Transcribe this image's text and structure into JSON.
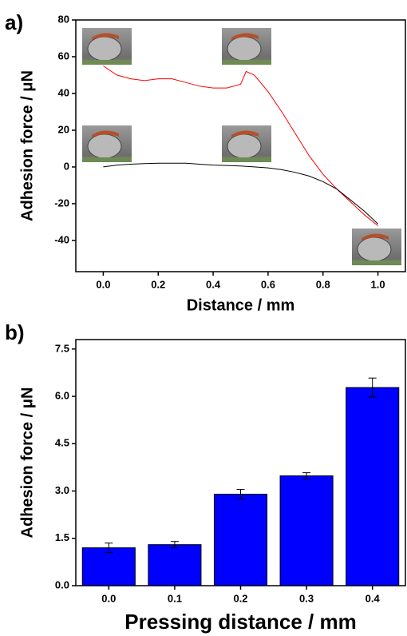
{
  "chart_data": [
    {
      "type": "line",
      "label": "a)",
      "ylabel": "Adhesion force / μN",
      "xlabel": "Distance / mm",
      "x": [
        0,
        0.05,
        0.1,
        0.15,
        0.2,
        0.25,
        0.3,
        0.35,
        0.4,
        0.45,
        0.5,
        0.52,
        0.55,
        0.6,
        0.65,
        0.7,
        0.75,
        0.8,
        0.85,
        0.9,
        0.95,
        1.0
      ],
      "series": [
        {
          "color": "#ff0000",
          "values": [
            55,
            50,
            48,
            47,
            48,
            48,
            46,
            44,
            43,
            43,
            45,
            52,
            50,
            41,
            30,
            18,
            6,
            -4,
            -12,
            -19,
            -26,
            -32
          ]
        },
        {
          "color": "#000000",
          "values": [
            0,
            1,
            1.5,
            1.8,
            2,
            2,
            2,
            1.5,
            1,
            0.8,
            0.5,
            0.3,
            0,
            -0.5,
            -1.5,
            -3,
            -5,
            -8,
            -12,
            -18,
            -24,
            -31
          ]
        }
      ],
      "xlim": [
        -0.1,
        1.1
      ],
      "ylim": [
        -57,
        80
      ],
      "xticks": [
        {
          "value": 0,
          "label": "0.0"
        },
        0.2,
        0.4,
        0.6,
        0.8,
        {
          "value": 1,
          "label": "1.0"
        }
      ],
      "yticks": [
        -40,
        -20,
        0,
        20,
        40,
        60,
        80
      ]
    },
    {
      "type": "bar",
      "label": "b)",
      "ylabel": "Adhesion force / μN",
      "xlabel": "Pressing distance / mm",
      "categories": [
        "0.0",
        "0.1",
        "0.2",
        "0.3",
        "0.4"
      ],
      "values": [
        1.2,
        1.3,
        2.9,
        3.48,
        6.28
      ],
      "errors": [
        0.15,
        0.1,
        0.15,
        0.1,
        0.3
      ],
      "color": "#0000ff",
      "ylim": [
        0,
        7.8
      ],
      "yticks": [
        {
          "value": 0,
          "label": "0.0"
        },
        1.5,
        {
          "value": 3,
          "label": "3.0"
        },
        4.5,
        {
          "value": 6,
          "label": "6.0"
        },
        7.5
      ]
    }
  ]
}
